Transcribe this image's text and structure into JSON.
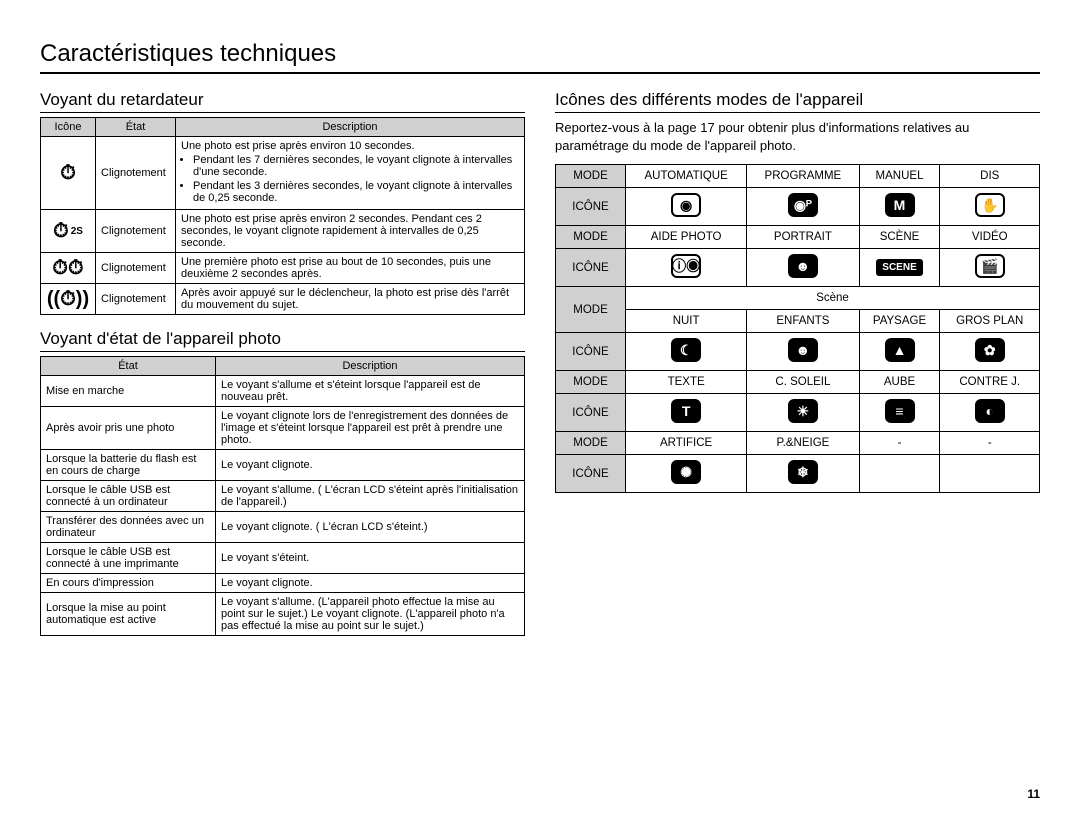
{
  "page_title": "Caractéristiques techniques",
  "page_number": "11",
  "left": {
    "timer": {
      "heading": "Voyant du retardateur",
      "headers": [
        "Icône",
        "État",
        "Description"
      ],
      "rows": [
        {
          "icon": "⏱",
          "icon_name": "timer-10s-icon",
          "state": "Clignotement",
          "desc_main": "Une photo est prise après environ 10 secondes.",
          "bullets": [
            "Pendant les 7 dernières secondes, le voyant clignote à intervalles d'une seconde.",
            "Pendant les 3 dernières secondes, le voyant clignote à intervalles de 0,25 seconde."
          ]
        },
        {
          "icon": "⏱",
          "sup": "2S",
          "icon_name": "timer-2s-icon",
          "state": "Clignotement",
          "desc": "Une photo est prise après environ 2 secondes. Pendant ces 2 secondes, le voyant clignote rapidement à intervalles de 0,25 seconde."
        },
        {
          "icon": "⏱⏱",
          "icon_name": "timer-double-icon",
          "state": "Clignotement",
          "desc": "Une première photo est prise au bout de 10 secondes, puis une deuxième 2 secondes après."
        },
        {
          "icon": "((⏱))",
          "icon_name": "timer-motion-icon",
          "state": "Clignotement",
          "desc": "Après avoir appuyé sur le déclencheur, la photo est prise dès l'arrêt du mouvement du sujet."
        }
      ]
    },
    "status": {
      "heading": "Voyant d'état de l'appareil photo",
      "headers": [
        "État",
        "Description"
      ],
      "rows": [
        {
          "state": "Mise en marche",
          "desc": "Le voyant s'allume et s'éteint lorsque l'appareil est de nouveau prêt."
        },
        {
          "state": "Après avoir pris une photo",
          "desc": "Le voyant clignote lors de l'enregistrement des données de l'image et s'éteint lorsque l'appareil est prêt à prendre une photo."
        },
        {
          "state": "Lorsque la batterie du flash est en cours de charge",
          "desc": "Le voyant clignote."
        },
        {
          "state": "Lorsque le câble USB est connecté à un ordinateur",
          "desc": "Le voyant s'allume. ( L'écran LCD s'éteint après l'initialisation de l'appareil.)"
        },
        {
          "state": "Transférer des données avec un ordinateur",
          "desc": "Le voyant clignote. ( L'écran LCD s'éteint.)"
        },
        {
          "state": "Lorsque le câble USB est connecté à une imprimante",
          "desc": "Le voyant s'éteint."
        },
        {
          "state": "En cours d'impression",
          "desc": "Le voyant clignote."
        },
        {
          "state": "Lorsque la mise au point automatique est active",
          "desc": "Le voyant s'allume. (L'appareil photo effectue la mise au point sur le sujet.) Le voyant clignote. (L'appareil photo n'a pas effectué la mise au point sur le sujet.)"
        }
      ]
    }
  },
  "right": {
    "heading": "Icônes des différents modes de l'appareil",
    "note": "Reportez-vous à la page 17 pour obtenir plus d'informations relatives au paramétrage du mode de l'appareil photo.",
    "labels": {
      "mode": "MODE",
      "icon": "ICÔNE",
      "scene": "Scène"
    },
    "block1": {
      "modes": [
        "AUTOMATIQUE",
        "PROGRAMME",
        "MANUEL",
        "DIS"
      ],
      "icons": [
        {
          "glyph": "◉",
          "style": "outline",
          "name": "mode-auto-icon"
        },
        {
          "glyph": "◉ᴾ",
          "style": "solid",
          "name": "mode-program-icon"
        },
        {
          "glyph": "M",
          "style": "solid",
          "name": "mode-manual-icon"
        },
        {
          "glyph": "✋",
          "style": "outline",
          "name": "mode-dis-icon"
        }
      ]
    },
    "block2": {
      "modes": [
        "AIDE PHOTO",
        "PORTRAIT",
        "SCÈNE",
        "VIDÉO"
      ],
      "icons": [
        {
          "glyph": "ⓘ◉",
          "style": "outline",
          "name": "mode-guide-icon"
        },
        {
          "glyph": "☻",
          "style": "solid",
          "name": "mode-portrait-icon"
        },
        {
          "label": "SCENE",
          "name": "mode-scene-icon"
        },
        {
          "glyph": "🎬",
          "style": "outline",
          "name": "mode-video-icon"
        }
      ]
    },
    "scene_block": {
      "rows": [
        {
          "modes": [
            "NUIT",
            "ENFANTS",
            "PAYSAGE",
            "GROS PLAN"
          ],
          "icons": [
            {
              "glyph": "☾",
              "style": "solid",
              "name": "scene-night-icon"
            },
            {
              "glyph": "☻",
              "style": "solid",
              "name": "scene-children-icon"
            },
            {
              "glyph": "▲",
              "style": "solid",
              "name": "scene-landscape-icon"
            },
            {
              "glyph": "✿",
              "style": "solid",
              "name": "scene-closeup-icon"
            }
          ]
        },
        {
          "modes": [
            "TEXTE",
            "C. SOLEIL",
            "AUBE",
            "CONTRE J."
          ],
          "icons": [
            {
              "glyph": "T",
              "style": "solid",
              "name": "scene-text-icon"
            },
            {
              "glyph": "☀",
              "style": "solid",
              "name": "scene-sunset-icon"
            },
            {
              "glyph": "≡",
              "style": "solid",
              "name": "scene-dawn-icon"
            },
            {
              "glyph": "◐",
              "style": "solid",
              "name": "scene-backlight-icon"
            }
          ]
        },
        {
          "modes": [
            "ARTIFICE",
            "P.&NEIGE",
            "-",
            "-"
          ],
          "icons": [
            {
              "glyph": "✺",
              "style": "solid",
              "name": "scene-firework-icon"
            },
            {
              "glyph": "❄",
              "style": "solid",
              "name": "scene-beachsnow-icon"
            },
            null,
            null
          ]
        }
      ]
    }
  }
}
